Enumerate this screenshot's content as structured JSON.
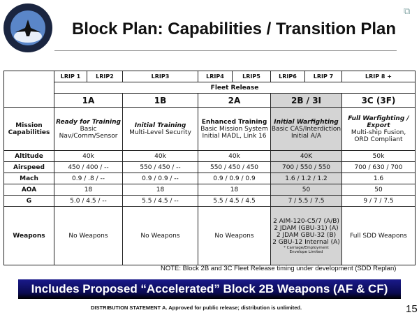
{
  "logo": {
    "text": "JOINT STRIKE FIGHTER - F-35 LIGHTNING II"
  },
  "title": "Block Plan: Capabilities / Transition Plan",
  "share_icon": "share-icon",
  "table": {
    "lrip": [
      "LRIP 1",
      "LRIP2",
      "LRIP3",
      "LRIP4",
      "LRIP5",
      "LRIP6",
      "LRIP 7",
      "LRIP 8 +"
    ],
    "fleet_release": "Fleet Release",
    "blocks": [
      "1A",
      "1B",
      "2A",
      "2B / 3I",
      "3C (3F)"
    ],
    "mission_label": [
      "Mission",
      "Capabilities"
    ],
    "mission": [
      {
        "head": "Ready for Training",
        "lines": [
          "Basic",
          "Nav/Comm/Sensor"
        ]
      },
      {
        "head": "Initial Training",
        "lines": [
          "Multi-Level Security"
        ]
      },
      {
        "head": "Enhanced  Training",
        "lines": [
          "Basic Mission System",
          "Initial MADL, Link 16"
        ]
      },
      {
        "head": "Initial Warfighting",
        "lines": [
          "Basic CAS/Interdiction",
          "Initial A/A"
        ]
      },
      {
        "head": "Full Warfighting / Export",
        "lines": [
          "Multi-ship Fusion,",
          "ORD Compliant"
        ]
      }
    ],
    "rows": [
      {
        "label": "Altitude",
        "values": [
          "40k",
          "40k",
          "40k",
          "40K",
          "50k"
        ]
      },
      {
        "label": "Airspeed",
        "values": [
          "450 / 400 / --",
          "550 / 450 / --",
          "550 / 450 / 450",
          "700 / 550 / 550",
          "700 / 630 / 700"
        ]
      },
      {
        "label": "Mach",
        "values": [
          "0.9 / .8 / --",
          "0.9 / 0.9 / --",
          "0.9 / 0.9 / 0.9",
          "1.6 / 1.2 / 1.2",
          "1.6"
        ]
      },
      {
        "label": "AOA",
        "values": [
          "18",
          "18",
          "18",
          "50",
          "50"
        ]
      },
      {
        "label": "G",
        "values": [
          "5.0 / 4.5 / --",
          "5.5 / 4.5 / --",
          "5.5 / 4.5 / 4.5",
          "7 / 5.5 / 7.5",
          "9 / 7 / 7.5"
        ]
      }
    ],
    "weapons_label": "Weapons",
    "weapons": [
      "No Weapons",
      "No Weapons",
      "No Weapons",
      null,
      "Full SDD Weapons"
    ],
    "weapons_2b": [
      "2 AIM-120-C5/7 (A/B)",
      "2 JDAM (GBU-31) (A)",
      "2 JDAM GBU-32 (B)",
      "2 GBU-12 Internal (A)"
    ],
    "weapons_2b_note": [
      "* Carriage/Employment",
      "Envelope Limited"
    ]
  },
  "note": "NOTE: Block 2B and 3C Fleet Release timing under development (SDD Replan)",
  "banner": "Includes Proposed “Accelerated” Block 2B Weapons (AF & CF)",
  "distribution": "DISTRIBUTION STATEMENT A.  Approved for public release; distribution is unlimited.",
  "page_number": "15",
  "colors": {
    "highlight": "#d4d4d4",
    "banner": "#14147a"
  }
}
